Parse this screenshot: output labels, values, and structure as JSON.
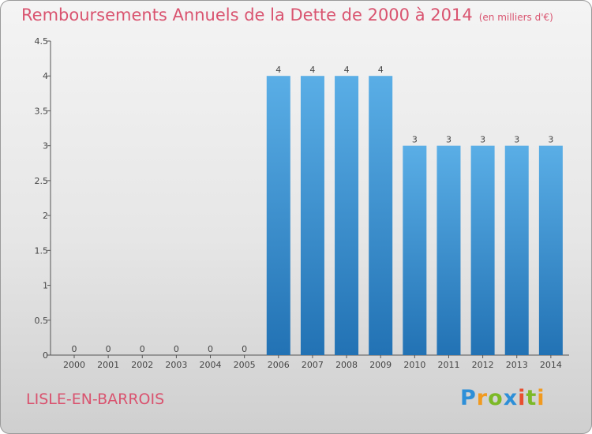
{
  "chart_data": {
    "type": "bar",
    "title": "Remboursements Annuels de la Dette de 2000 à 2014",
    "units": "(en milliers d'€)",
    "categories": [
      "2000",
      "2001",
      "2002",
      "2003",
      "2004",
      "2005",
      "2006",
      "2007",
      "2008",
      "2009",
      "2010",
      "2011",
      "2012",
      "2013",
      "2014"
    ],
    "values": [
      0,
      0,
      0,
      0,
      0,
      0,
      4,
      4,
      4,
      4,
      3,
      3,
      3,
      3,
      3
    ],
    "data_labels": [
      "0",
      "0",
      "0",
      "0",
      "0",
      "0",
      "4",
      "4",
      "4",
      "4",
      "3",
      "3",
      "3",
      "3",
      "3"
    ],
    "ylim": [
      0,
      4.5
    ],
    "yticks": [
      {
        "value": 0,
        "label": "0"
      },
      {
        "value": 0.5,
        "label": "0.5"
      },
      {
        "value": 1,
        "label": "1"
      },
      {
        "value": 1.5,
        "label": "1.5"
      },
      {
        "value": 2,
        "label": "2"
      },
      {
        "value": 2.5,
        "label": "2.5"
      },
      {
        "value": 3,
        "label": "3"
      },
      {
        "value": 3.5,
        "label": "3.5"
      },
      {
        "value": 4,
        "label": "4"
      },
      {
        "value": 4.5,
        "label": "4.5"
      }
    ],
    "bar_color_top": "#5aaee6",
    "bar_color_bottom": "#2272b4"
  },
  "footer": {
    "place": "LISLE-EN-BARROIS",
    "logo": {
      "p": "P",
      "r": "r",
      "o": "o",
      "x": "x",
      "i1": "i",
      "t": "t",
      "i2": "i"
    }
  },
  "colors": {
    "title": "#d9536f"
  }
}
